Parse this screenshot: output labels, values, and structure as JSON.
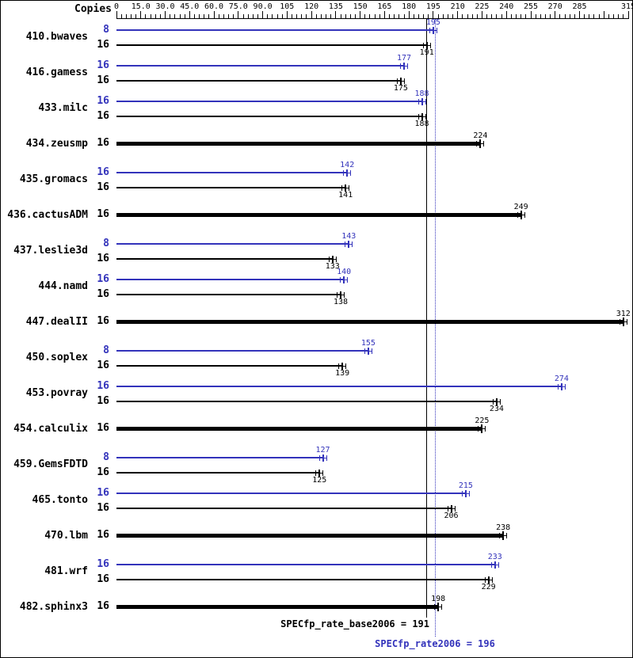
{
  "header": {
    "copies_label": "Copies"
  },
  "footer": {
    "base_label": "SPECfp_rate_base2006 = 191",
    "peak_label": "SPECfp_rate2006 = 196"
  },
  "colors": {
    "peak_blue": "#3333bb",
    "base_black": "#000000",
    "background": "#ffffff"
  },
  "chart_data": {
    "type": "bar",
    "orientation": "horizontal",
    "grid": false,
    "legend": "none",
    "xlim": [
      0,
      315
    ],
    "ticks": [
      {
        "v": 0,
        "label": "0"
      },
      {
        "v": 15,
        "label": "15.0"
      },
      {
        "v": 30,
        "label": "30.0"
      },
      {
        "v": 45,
        "label": "45.0"
      },
      {
        "v": 60,
        "label": "60.0"
      },
      {
        "v": 75,
        "label": "75.0"
      },
      {
        "v": 90,
        "label": "90.0"
      },
      {
        "v": 105,
        "label": "105"
      },
      {
        "v": 120,
        "label": "120"
      },
      {
        "v": 135,
        "label": "135"
      },
      {
        "v": 150,
        "label": "150"
      },
      {
        "v": 165,
        "label": "165"
      },
      {
        "v": 180,
        "label": "180"
      },
      {
        "v": 195,
        "label": "195"
      },
      {
        "v": 210,
        "label": "210"
      },
      {
        "v": 225,
        "label": "225"
      },
      {
        "v": 240,
        "label": "240"
      },
      {
        "v": 255,
        "label": "255"
      },
      {
        "v": 270,
        "label": "270"
      },
      {
        "v": 285,
        "label": "285"
      },
      {
        "v": 315,
        "label": "315"
      }
    ],
    "reference_lines": [
      {
        "label": "SPECfp_rate_base2006",
        "value": 191,
        "style": "solid",
        "color": "#000000"
      },
      {
        "label": "SPECfp_rate2006",
        "value": 196,
        "style": "dotted",
        "color": "#3333bb"
      }
    ],
    "benchmarks": [
      {
        "name": "410.bwaves",
        "bars": [
          {
            "kind": "peak",
            "copies": "8",
            "value": 195
          },
          {
            "kind": "base",
            "copies": "16",
            "value": 191
          }
        ]
      },
      {
        "name": "416.gamess",
        "bars": [
          {
            "kind": "peak",
            "copies": "16",
            "value": 177
          },
          {
            "kind": "base",
            "copies": "16",
            "value": 175
          }
        ]
      },
      {
        "name": "433.milc",
        "bars": [
          {
            "kind": "peak",
            "copies": "16",
            "value": 188
          },
          {
            "kind": "base",
            "copies": "16",
            "value": 188
          }
        ]
      },
      {
        "name": "434.zeusmp",
        "bars": [
          {
            "kind": "single",
            "copies": "16",
            "value": 224
          }
        ]
      },
      {
        "name": "435.gromacs",
        "bars": [
          {
            "kind": "peak",
            "copies": "16",
            "value": 142
          },
          {
            "kind": "base",
            "copies": "16",
            "value": 141
          }
        ]
      },
      {
        "name": "436.cactusADM",
        "bars": [
          {
            "kind": "single",
            "copies": "16",
            "value": 249
          }
        ]
      },
      {
        "name": "437.leslie3d",
        "bars": [
          {
            "kind": "peak",
            "copies": "8",
            "value": 143
          },
          {
            "kind": "base",
            "copies": "16",
            "value": 133
          }
        ]
      },
      {
        "name": "444.namd",
        "bars": [
          {
            "kind": "peak",
            "copies": "16",
            "value": 140
          },
          {
            "kind": "base",
            "copies": "16",
            "value": 138
          }
        ]
      },
      {
        "name": "447.dealII",
        "bars": [
          {
            "kind": "single",
            "copies": "16",
            "value": 312
          }
        ]
      },
      {
        "name": "450.soplex",
        "bars": [
          {
            "kind": "peak",
            "copies": "8",
            "value": 155
          },
          {
            "kind": "base",
            "copies": "16",
            "value": 139
          }
        ]
      },
      {
        "name": "453.povray",
        "bars": [
          {
            "kind": "peak",
            "copies": "16",
            "value": 274
          },
          {
            "kind": "base",
            "copies": "16",
            "value": 234
          }
        ]
      },
      {
        "name": "454.calculix",
        "bars": [
          {
            "kind": "single",
            "copies": "16",
            "value": 225
          }
        ]
      },
      {
        "name": "459.GemsFDTD",
        "bars": [
          {
            "kind": "peak",
            "copies": "8",
            "value": 127
          },
          {
            "kind": "base",
            "copies": "16",
            "value": 125
          }
        ]
      },
      {
        "name": "465.tonto",
        "bars": [
          {
            "kind": "peak",
            "copies": "16",
            "value": 215
          },
          {
            "kind": "base",
            "copies": "16",
            "value": 206
          }
        ]
      },
      {
        "name": "470.lbm",
        "bars": [
          {
            "kind": "single",
            "copies": "16",
            "value": 238
          }
        ]
      },
      {
        "name": "481.wrf",
        "bars": [
          {
            "kind": "peak",
            "copies": "16",
            "value": 233
          },
          {
            "kind": "base",
            "copies": "16",
            "value": 229
          }
        ]
      },
      {
        "name": "482.sphinx3",
        "bars": [
          {
            "kind": "single",
            "copies": "16",
            "value": 198
          }
        ]
      }
    ]
  }
}
